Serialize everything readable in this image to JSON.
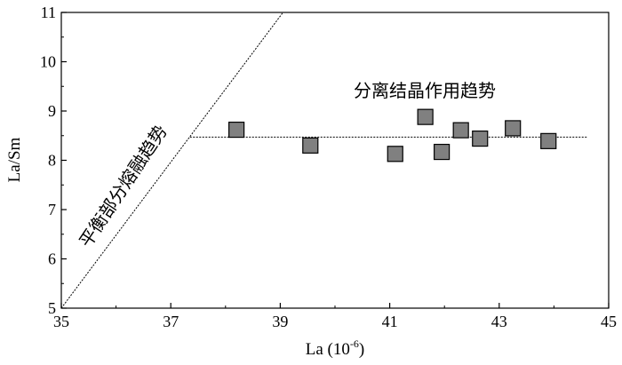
{
  "chart_data": {
    "type": "scatter",
    "xlabel": "La (10",
    "xlabel_sup": "-6",
    "xlabel_close": ")",
    "ylabel": "La/Sm",
    "xlim": [
      35,
      45
    ],
    "ylim": [
      5,
      11
    ],
    "x_ticks": [
      "35",
      "37",
      "39",
      "41",
      "43",
      "45"
    ],
    "y_ticks": [
      "5",
      "6",
      "7",
      "8",
      "9",
      "10",
      "11"
    ],
    "grid": false,
    "marker": "square",
    "marker_color": "#808080",
    "points": [
      {
        "x": 38.2,
        "y": 8.62
      },
      {
        "x": 39.55,
        "y": 8.3
      },
      {
        "x": 41.1,
        "y": 8.13
      },
      {
        "x": 41.65,
        "y": 8.88
      },
      {
        "x": 41.95,
        "y": 8.17
      },
      {
        "x": 42.3,
        "y": 8.61
      },
      {
        "x": 42.65,
        "y": 8.44
      },
      {
        "x": 43.25,
        "y": 8.65
      },
      {
        "x": 43.9,
        "y": 8.39
      }
    ],
    "trend_lines": [
      {
        "name": "partial-melting",
        "from": {
          "x": 35,
          "y": 5
        },
        "to": {
          "x": 39.05,
          "y": 11
        }
      },
      {
        "name": "fractional-crystallization",
        "from": {
          "x": 37.35,
          "y": 8.47
        },
        "to": {
          "x": 44.6,
          "y": 8.47
        }
      }
    ],
    "annotations": {
      "partial_melting": "平衡部分熔融趋势",
      "fractional_crystallization": "分离结晶作用趋势"
    }
  }
}
